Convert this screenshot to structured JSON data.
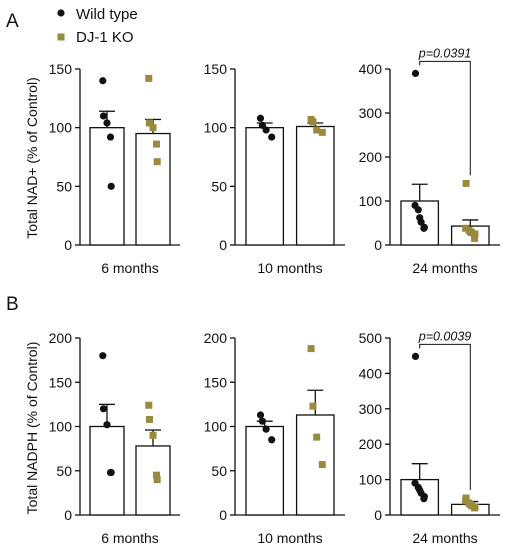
{
  "figure": {
    "panel_labels": [
      "A",
      "B"
    ],
    "legend": [
      {
        "name": "Wild type",
        "color": "#111111",
        "marker": "circle"
      },
      {
        "name": "DJ-1 KO",
        "color": "#9a8a3c",
        "marker": "square"
      }
    ]
  },
  "chart_data": [
    {
      "type": "bar",
      "panel": "A",
      "xlabel": "6 months",
      "ylabel": "Total NAD+ (% of Control)",
      "ylim": [
        0,
        150
      ],
      "yticks": [
        0,
        50,
        100,
        150
      ],
      "categories": [
        "Wild type",
        "DJ-1 KO"
      ],
      "series": [
        {
          "name": "Wild type",
          "mean": 100,
          "sem": 14,
          "points": [
            140,
            110,
            104,
            92,
            50
          ]
        },
        {
          "name": "DJ-1 KO",
          "mean": 95,
          "sem": 12,
          "points": [
            142,
            104,
            100,
            86,
            71
          ]
        }
      ]
    },
    {
      "type": "bar",
      "panel": "A",
      "xlabel": "10 months",
      "ylabel": "",
      "ylim": [
        0,
        150
      ],
      "yticks": [
        0,
        50,
        100,
        150
      ],
      "categories": [
        "Wild type",
        "DJ-1 KO"
      ],
      "series": [
        {
          "name": "Wild type",
          "mean": 100,
          "sem": 4,
          "points": [
            108,
            102,
            98,
            92
          ]
        },
        {
          "name": "DJ-1 KO",
          "mean": 101,
          "sem": 3,
          "points": [
            107,
            105,
            98,
            96
          ]
        }
      ]
    },
    {
      "type": "bar",
      "panel": "A",
      "xlabel": "24 months",
      "ylabel": "",
      "ylim": [
        0,
        400
      ],
      "yticks": [
        0,
        100,
        200,
        300,
        400
      ],
      "categories": [
        "Wild type",
        "DJ-1 KO"
      ],
      "annotation": "p=0.0391",
      "series": [
        {
          "name": "Wild type",
          "mean": 100,
          "sem": 38,
          "points": [
            390,
            90,
            80,
            62,
            52,
            40,
            38
          ]
        },
        {
          "name": "DJ-1 KO",
          "mean": 43,
          "sem": 14,
          "points": [
            140,
            38,
            34,
            30,
            28,
            25,
            15
          ]
        }
      ]
    },
    {
      "type": "bar",
      "panel": "B",
      "xlabel": "6 months",
      "ylabel": "Total NADPH (% of Control)",
      "ylim": [
        0,
        200
      ],
      "yticks": [
        0,
        50,
        100,
        150,
        200
      ],
      "categories": [
        "Wild type",
        "DJ-1 KO"
      ],
      "series": [
        {
          "name": "Wild type",
          "mean": 100,
          "sem": 25,
          "points": [
            180,
            120,
            102,
            48,
            48
          ]
        },
        {
          "name": "DJ-1 KO",
          "mean": 78,
          "sem": 18,
          "points": [
            124,
            108,
            90,
            45,
            40
          ]
        }
      ]
    },
    {
      "type": "bar",
      "panel": "B",
      "xlabel": "10 months",
      "ylabel": "",
      "ylim": [
        0,
        200
      ],
      "yticks": [
        0,
        50,
        100,
        150,
        200
      ],
      "categories": [
        "Wild type",
        "DJ-1 KO"
      ],
      "series": [
        {
          "name": "Wild type",
          "mean": 100,
          "sem": 6,
          "points": [
            113,
            106,
            97,
            85
          ]
        },
        {
          "name": "DJ-1 KO",
          "mean": 113,
          "sem": 28,
          "points": [
            188,
            123,
            88,
            57
          ]
        }
      ]
    },
    {
      "type": "bar",
      "panel": "B",
      "xlabel": "24 months",
      "ylabel": "",
      "ylim": [
        0,
        500
      ],
      "yticks": [
        0,
        100,
        200,
        300,
        400,
        500
      ],
      "categories": [
        "Wild type",
        "DJ-1 KO"
      ],
      "annotation": "p=0.0039",
      "series": [
        {
          "name": "Wild type",
          "mean": 100,
          "sem": 45,
          "points": [
            448,
            90,
            78,
            70,
            62,
            52,
            46
          ]
        },
        {
          "name": "DJ-1 KO",
          "mean": 30,
          "sem": 8,
          "points": [
            48,
            40,
            34,
            30,
            26,
            22,
            20
          ]
        }
      ]
    }
  ]
}
